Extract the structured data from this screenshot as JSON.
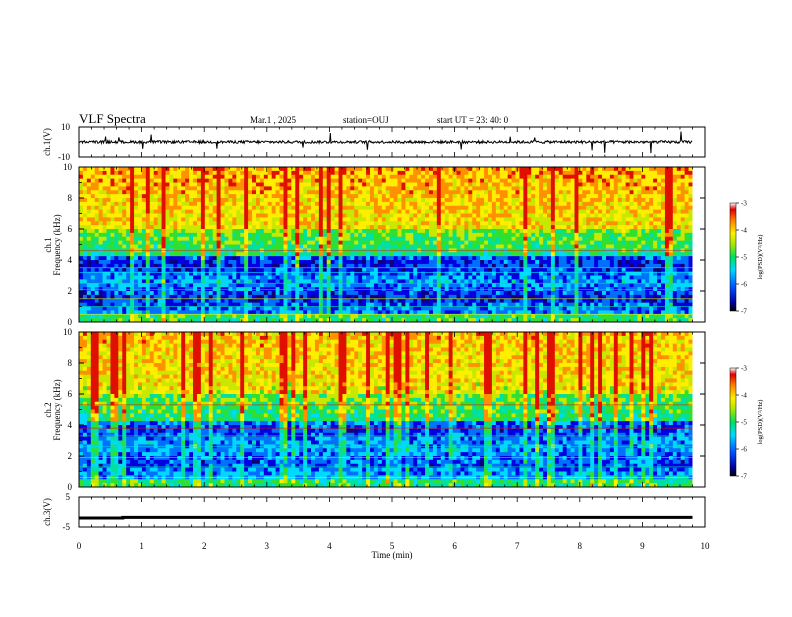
{
  "header": {
    "title": "VLF Spectra",
    "date": "Mar.1 , 2025",
    "station": "station=OUJ",
    "start": "start UT = 23: 40: 0"
  },
  "colors": {
    "spectrogram_palette": [
      "#10007a",
      "#0000e0",
      "#0070ff",
      "#00d8ff",
      "#00e0a0",
      "#30e030",
      "#c8e800",
      "#ffee00",
      "#ff9000",
      "#e01000"
    ],
    "waveform": "#000000"
  },
  "chart_data": [
    {
      "type": "line",
      "panel": "ch1-waveform",
      "ylabel": "ch.1(V)",
      "ylim": [
        -10,
        10
      ],
      "ytick_labels": [
        "10",
        "-10"
      ],
      "x": {
        "range_min": [
          0,
          9.8
        ]
      },
      "series": [
        {
          "values_approx": "noise centered near 0 V, amplitude about ±1 V, sporadic spikes to ±10 V"
        }
      ]
    },
    {
      "type": "heatmap",
      "panel": "ch1-spectrogram",
      "ylabel_line1": "ch.1",
      "ylabel_line2": "Frequency (kHz)",
      "ylim": [
        0,
        10
      ],
      "yticks": [
        "0",
        "2",
        "4",
        "6",
        "8",
        "10"
      ],
      "x_range_min": [
        0,
        9.8
      ],
      "colorbar": {
        "label": "log(PSD)(V²/Hz)",
        "range": [
          -7,
          -3
        ],
        "ticks": [
          "-3",
          "-4",
          "-5",
          "-6",
          "-7"
        ]
      },
      "features": "high power (-3 to -4) above ~5 kHz, low power (-6 to -7) between 0.5 and 3.5 kHz, horizontal interference lines near 1.5, 2.5, 3.5 and 4.6 kHz, vertical sferics throughout"
    },
    {
      "type": "heatmap",
      "panel": "ch2-spectrogram",
      "ylabel_line1": "ch.2",
      "ylabel_line2": "Frequency (kHz)",
      "ylim": [
        0,
        10
      ],
      "yticks": [
        "0",
        "2",
        "4",
        "6",
        "8",
        "10"
      ],
      "x_range_min": [
        0,
        9.8
      ],
      "colorbar": {
        "label": "log(PSD)(V²/Hz)",
        "range": [
          -7,
          -3
        ],
        "ticks": [
          "-3",
          "-4",
          "-5",
          "-6",
          "-7"
        ]
      },
      "features": "similar to ch.1 with slightly lower power at high frequencies and interference lines near 3.8 and 5.3 kHz"
    },
    {
      "type": "line",
      "panel": "ch3-signal",
      "ylabel": "ch.3(V)",
      "ylim": [
        -5,
        5
      ],
      "ytick_labels": [
        "5",
        "-5"
      ],
      "series": [
        {
          "x": [
            0,
            0.7,
            0.7,
            9.8
          ],
          "y": [
            -2,
            -2,
            -1.8,
            -1.8
          ]
        }
      ]
    }
  ],
  "xaxis": {
    "label": "Time (min)",
    "ticks": [
      "0",
      "1",
      "2",
      "3",
      "4",
      "5",
      "6",
      "7",
      "8",
      "9",
      "10"
    ],
    "min": 0,
    "max": 10
  }
}
